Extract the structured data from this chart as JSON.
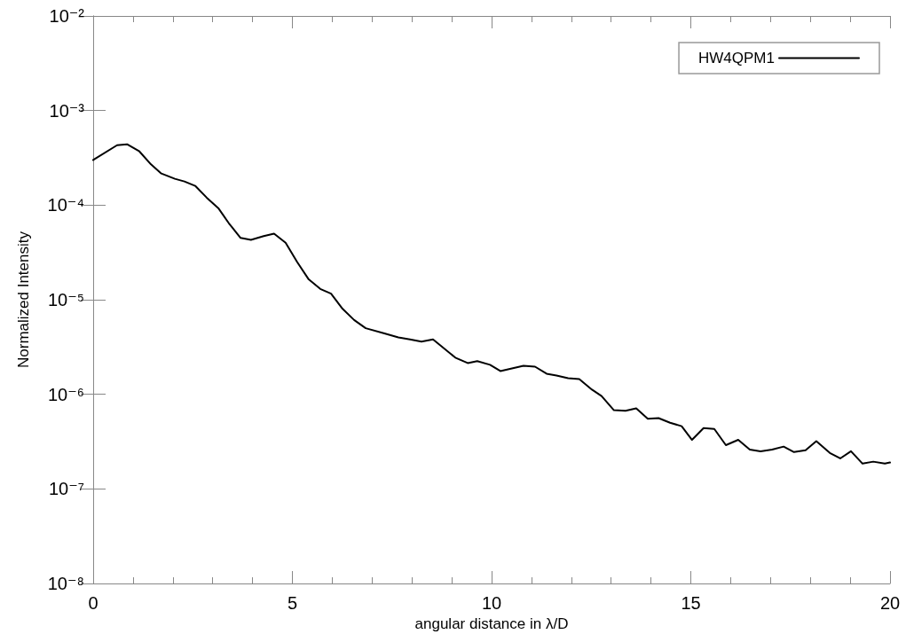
{
  "chart_data": {
    "type": "line",
    "xlabel": "angular distance in λ/D",
    "ylabel": "Normalized Intensity",
    "x": [
      0,
      0.6,
      0.85,
      1.16,
      1.45,
      1.71,
      2.05,
      2.29,
      2.56,
      2.85,
      3.14,
      3.41,
      3.7,
      3.96,
      4.28,
      4.54,
      4.83,
      5.12,
      5.41,
      5.7,
      5.97,
      6.26,
      6.55,
      6.84,
      7.31,
      7.66,
      7.95,
      8.24,
      8.53,
      9.09,
      9.4,
      9.64,
      9.96,
      10.22,
      10.8,
      11.09,
      11.38,
      11.63,
      11.92,
      12.2,
      12.52,
      12.76,
      13.07,
      13.36,
      13.63,
      13.92,
      14.19,
      14.48,
      14.77,
      15.03,
      15.32,
      15.59,
      15.88,
      16.19,
      16.48,
      16.75,
      17.04,
      17.33,
      17.59,
      17.88,
      18.15,
      18.49,
      18.75,
      19.02,
      19.31,
      19.58,
      19.87,
      20
    ],
    "series": [
      {
        "name": "HW4QPM1",
        "color": "#000000",
        "values": [
          0.0003,
          0.00043,
          0.00044,
          0.00037,
          0.00027,
          0.000216,
          0.00019,
          0.000178,
          0.00016,
          0.00012,
          9.3e-05,
          6.4e-05,
          4.5e-05,
          4.3e-05,
          4.7e-05,
          5e-05,
          4e-05,
          2.5e-05,
          1.64e-05,
          1.3e-05,
          1.16e-05,
          8e-06,
          6.1e-06,
          5e-06,
          4.4e-06,
          4e-06,
          3.8e-06,
          3.6e-06,
          3.8e-06,
          2.44e-06,
          2.14e-06,
          2.24e-06,
          2.05e-06,
          1.76e-06,
          2e-06,
          1.96e-06,
          1.65e-06,
          1.58e-06,
          1.48e-06,
          1.45e-06,
          1.12e-06,
          9.6e-07,
          6.8e-07,
          6.7e-07,
          7.1e-07,
          5.5e-07,
          5.6e-07,
          5e-07,
          4.6e-07,
          3.3e-07,
          4.4e-07,
          4.3e-07,
          2.9e-07,
          3.3e-07,
          2.6e-07,
          2.5e-07,
          2.6e-07,
          2.8e-07,
          2.45e-07,
          2.56e-07,
          3.2e-07,
          2.4e-07,
          2.1e-07,
          2.5e-07,
          1.85e-07,
          1.94e-07,
          1.85e-07,
          1.9e-07
        ]
      }
    ],
    "xlim": [
      0,
      20
    ],
    "xticks": [
      0,
      5,
      10,
      15,
      20
    ],
    "ylim": [
      1e-08,
      0.01
    ],
    "yticks": [
      {
        "value": 1e-08,
        "label": "10⁻⁸"
      },
      {
        "value": 1e-07,
        "label": "10⁻⁷"
      },
      {
        "value": 1e-06,
        "label": "10⁻⁶"
      },
      {
        "value": 1e-05,
        "label": "10⁻⁵"
      },
      {
        "value": 0.0001,
        "label": "10⁻⁴"
      },
      {
        "value": 0.001,
        "label": "10⁻³"
      },
      {
        "value": 0.01,
        "label": "10⁻²"
      }
    ],
    "log": "y",
    "grid": false,
    "legend": "top right",
    "marker": "none",
    "line_style": "solid"
  }
}
